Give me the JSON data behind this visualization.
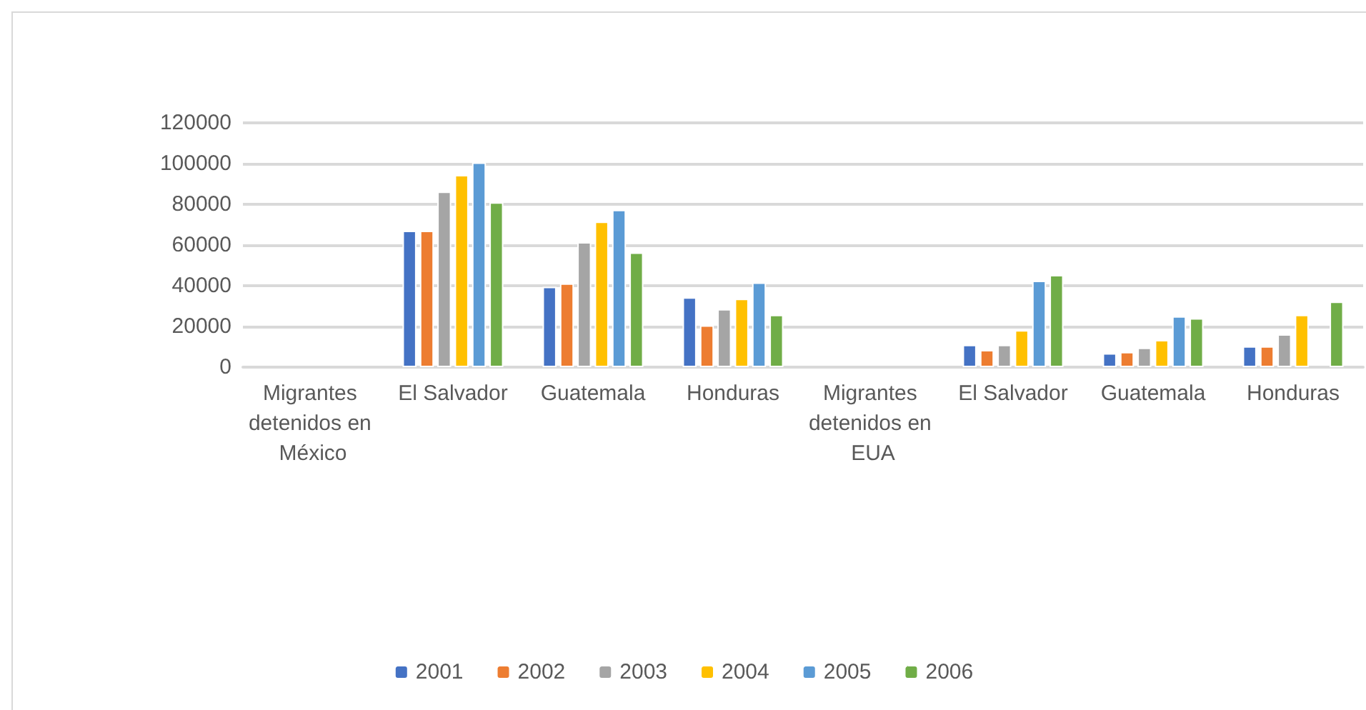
{
  "chart_data": {
    "type": "bar",
    "categories": [
      "Migrantes detenidos en México",
      "El Salvador",
      "Guatemala",
      "Honduras",
      "Migrantes detenidos en EUA",
      "El Salvador",
      "Guatemala",
      "Honduras"
    ],
    "series": [
      {
        "name": "2001",
        "color": "#4472c4",
        "values": [
          null,
          67000,
          39500,
          34300,
          null,
          11000,
          6800,
          10300
        ]
      },
      {
        "name": "2002",
        "color": "#ed7d31",
        "values": [
          null,
          67000,
          41100,
          20500,
          null,
          8400,
          7500,
          10300
        ]
      },
      {
        "name": "2003",
        "color": "#a5a5a5",
        "values": [
          null,
          86200,
          61400,
          28500,
          null,
          11000,
          9600,
          16100
        ]
      },
      {
        "name": "2004",
        "color": "#ffc000",
        "values": [
          null,
          94400,
          71500,
          33600,
          null,
          18200,
          13300,
          25700
        ]
      },
      {
        "name": "2005",
        "color": "#5b9bd5",
        "values": [
          null,
          100500,
          77300,
          41600,
          null,
          42500,
          25000,
          null
        ]
      },
      {
        "name": "2006",
        "color": "#70ad47",
        "values": [
          null,
          81000,
          56300,
          25700,
          null,
          45300,
          24000,
          32200
        ]
      }
    ],
    "ylim": [
      0,
      120000
    ],
    "yticks": [
      0,
      20000,
      40000,
      60000,
      80000,
      100000,
      120000
    ],
    "grid": "y",
    "legend": "bottom"
  }
}
